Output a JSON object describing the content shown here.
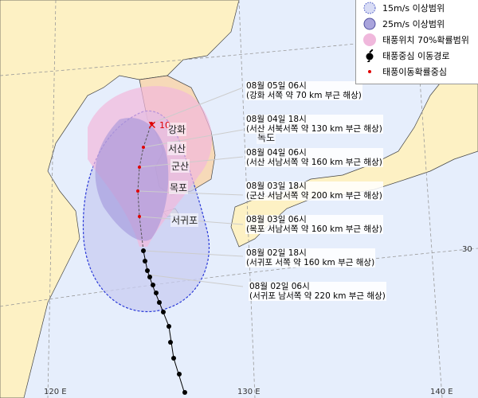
{
  "legend": {
    "items": [
      {
        "label": "15m/s 이상범위",
        "icon": "dotted-circle-icon",
        "color": "#d8dcf5"
      },
      {
        "label": "25m/s 이상범위",
        "icon": "purple-circle-icon",
        "color": "#a9a4dc"
      },
      {
        "label": "태풍위치 70%확률범위",
        "icon": "pink-circle-icon",
        "color": "#f0b8dc"
      },
      {
        "label": "태풍중심 이동경로",
        "icon": "typhoon-symbol-icon",
        "color": "#000000"
      },
      {
        "label": "태풍이동확률중심",
        "icon": "red-dot-icon",
        "color": "#e00000"
      }
    ]
  },
  "forecasts": [
    {
      "time": "08월 05일 06시",
      "desc": "(강화 서쪽 약 70 km 부근 해상)"
    },
    {
      "time": "08월 04일 18시",
      "desc": "(서산 서북서쪽 약 130 km 부근 해상)"
    },
    {
      "time": "08월 04일 06시",
      "desc": "(서산 서남서쪽 약 160 km 부근 해상)"
    },
    {
      "time": "08월 03일 18시",
      "desc": "(군산 서남서쪽 약 200 km 부근 해상)"
    },
    {
      "time": "08월 03일 06시",
      "desc": "(목포 서남서쪽 약 160 km 부근 해상)"
    },
    {
      "time": "08월 02일 18시",
      "desc": "(서귀포 서쪽 약 160 km 부근 해상)"
    },
    {
      "time": "08월 02일 06시",
      "desc": "(서귀포 남서쪽 약 220 km 부근 해상)"
    }
  ],
  "cities": [
    "강화",
    "서산",
    "군산",
    "목포",
    "서귀포",
    "독도"
  ],
  "end_marker": "10",
  "axes": {
    "lon": [
      "120 E",
      "130 E",
      "140 E"
    ],
    "lat": [
      "30"
    ]
  },
  "colors": {
    "land": "#fdf1c4",
    "sea": "#e6eefc",
    "korea_land": "#f6d9b8"
  }
}
